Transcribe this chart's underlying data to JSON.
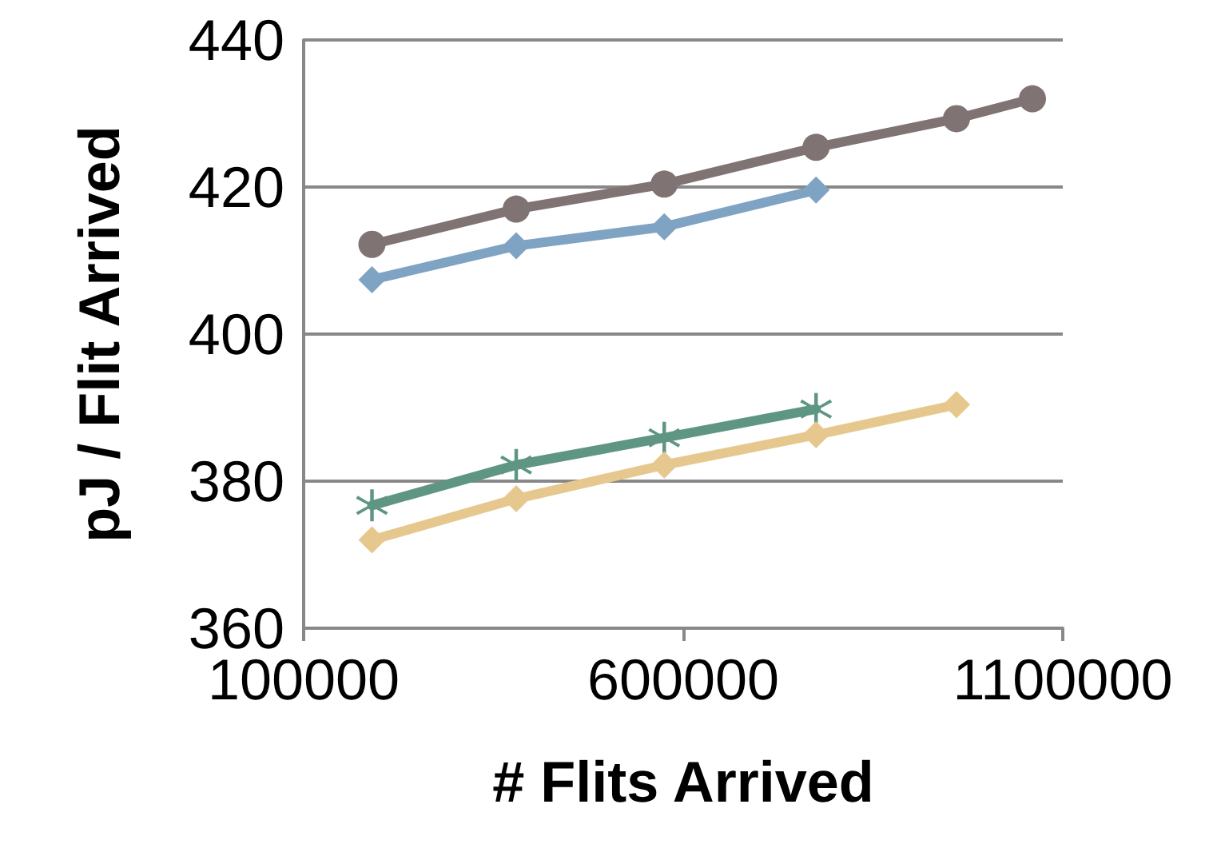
{
  "chart_data": {
    "type": "line",
    "xlabel": "# Flits Arrived",
    "ylabel": "pJ / Flit Arrived",
    "xlim": [
      100000,
      1100000
    ],
    "xticks": [
      100000,
      600000,
      1100000
    ],
    "ylim": [
      360,
      440
    ],
    "yticks": [
      360,
      380,
      400,
      420,
      440
    ],
    "grid": "y",
    "line_style": "solid",
    "series": [
      {
        "color": "#7f7374",
        "marker": "circle",
        "x": [
          190000,
          380000,
          575000,
          775000,
          960000,
          1060000
        ],
        "values": [
          412.2,
          417.0,
          420.4,
          425.4,
          429.3,
          432.0
        ]
      },
      {
        "color": "#7fa3c2",
        "marker": "diamond",
        "x": [
          190000,
          380000,
          575000,
          775000
        ],
        "values": [
          407.4,
          412.0,
          414.6,
          419.6
        ]
      },
      {
        "color": "#5e9683",
        "marker": "cross",
        "x": [
          190000,
          380000,
          575000,
          775000
        ],
        "values": [
          376.7,
          382.2,
          385.9,
          389.8
        ]
      },
      {
        "color": "#e6c88f",
        "marker": "diamond",
        "x": [
          190000,
          380000,
          575000,
          775000,
          960000
        ],
        "values": [
          372.0,
          377.6,
          382.2,
          386.3,
          390.4
        ]
      }
    ]
  }
}
